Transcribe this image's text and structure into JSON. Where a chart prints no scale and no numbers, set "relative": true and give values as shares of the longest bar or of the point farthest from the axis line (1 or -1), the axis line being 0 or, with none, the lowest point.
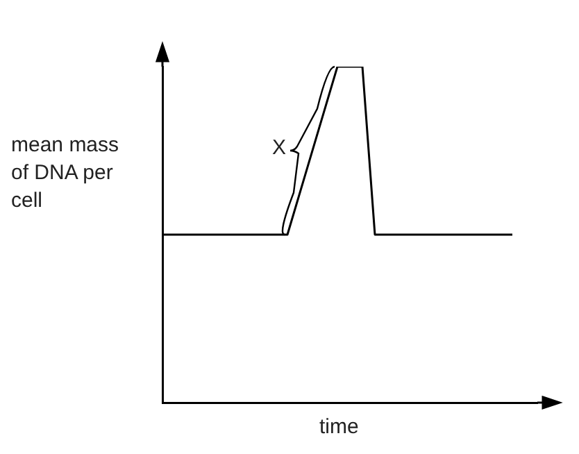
{
  "chart_data": {
    "type": "line",
    "relative": true,
    "xlabel": "time",
    "ylabel": "mean mass of DNA per cell",
    "categories": [
      null,
      null,
      null,
      null,
      null,
      null,
      null,
      null,
      null,
      null,
      null,
      null,
      null,
      null,
      null,
      null,
      null,
      null,
      null,
      null,
      null,
      null,
      null,
      null,
      null,
      null,
      null,
      null,
      null,
      null,
      null
    ],
    "series": [
      {
        "color": "#000000",
        "values": [
          0.5,
          null,
          null,
          null,
          null,
          null,
          null,
          null,
          null,
          null,
          0.5,
          null,
          null,
          null,
          1,
          null,
          1,
          0.5,
          null,
          null,
          null,
          null,
          null,
          null,
          null,
          null,
          null,
          null,
          0.5,
          null,
          null
        ]
      }
    ],
    "annotations": [
      "X"
    ],
    "grid": false,
    "legend": false,
    "tick_labels": false,
    "marker": "none",
    "line_style": "solid"
  }
}
